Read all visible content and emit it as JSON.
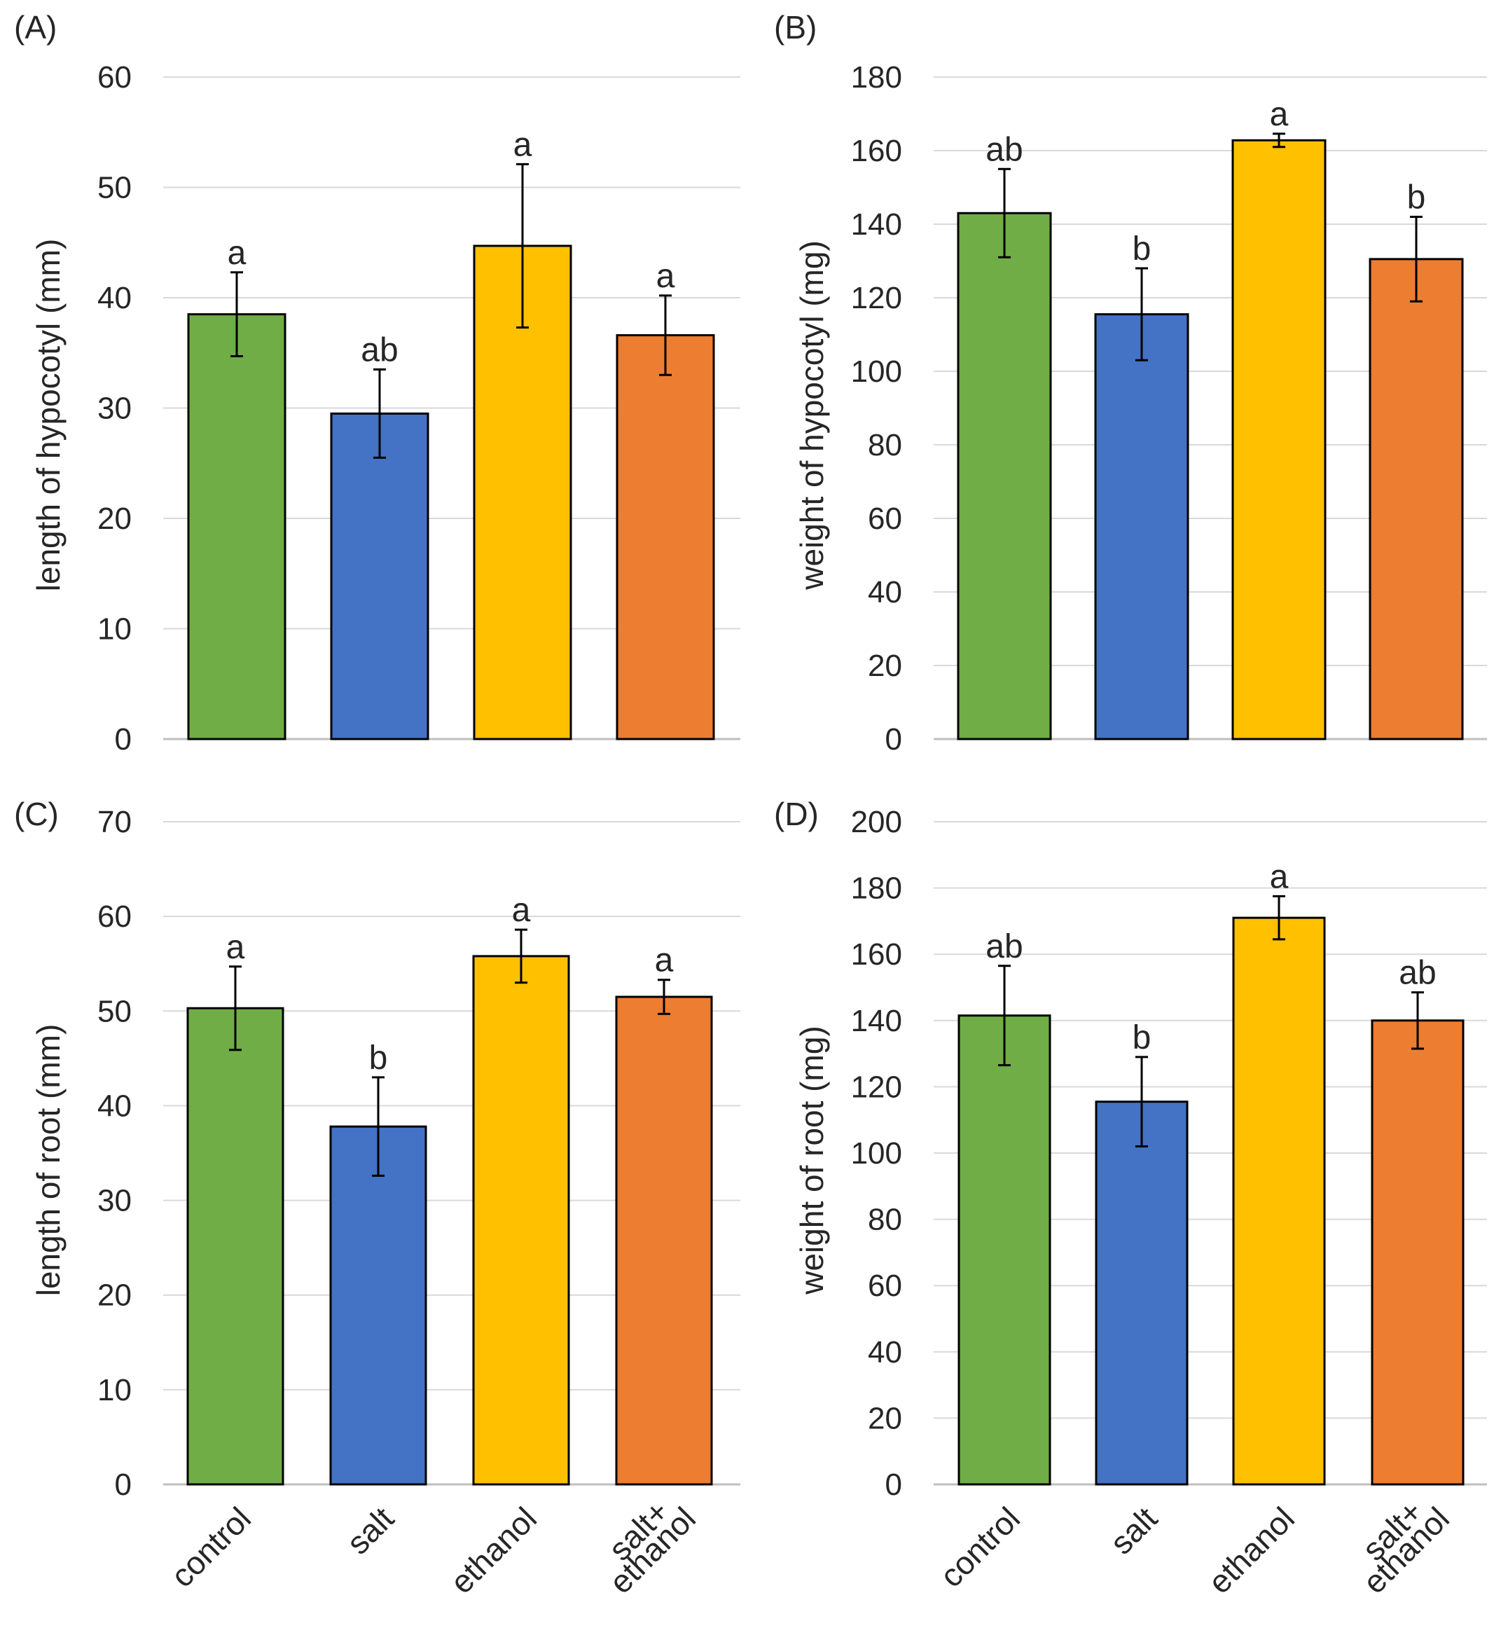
{
  "colors": {
    "control": "#70ad47",
    "salt": "#4472c4",
    "ethanol": "#ffc000",
    "salt_ethanol": "#ed7d31",
    "grid": "#d9d9d9",
    "axis": "#bfbfbf",
    "text": "#262626"
  },
  "chart_data": [
    {
      "panel": "(A)",
      "type": "bar",
      "ylabel": "length of hypocotyl (mm)",
      "ylim": [
        0,
        60
      ],
      "yticks": [
        0,
        10,
        20,
        30,
        40,
        50,
        60
      ],
      "grid": true,
      "categories": [
        "control",
        "salt",
        "ethanol",
        "salt+\nethanol"
      ],
      "values": [
        38.5,
        29.5,
        44.7,
        36.6
      ],
      "errors": [
        3.8,
        4.0,
        7.4,
        3.6
      ],
      "letters": [
        "a",
        "ab",
        "a",
        "a"
      ]
    },
    {
      "panel": "(B)",
      "type": "bar",
      "ylabel": "weight of hypocotyl (mg)",
      "ylim": [
        0,
        180
      ],
      "yticks": [
        0,
        20,
        40,
        60,
        80,
        100,
        120,
        140,
        160,
        180
      ],
      "grid": true,
      "categories": [
        "control",
        "salt",
        "ethanol",
        "salt+\nethanol"
      ],
      "values": [
        143,
        115.5,
        162.8,
        130.5
      ],
      "errors": [
        12,
        12.5,
        1.8,
        11.5
      ],
      "letters": [
        "ab",
        "b",
        "a",
        "b"
      ]
    },
    {
      "panel": "(C)",
      "type": "bar",
      "ylabel": "length of root (mm)",
      "ylim": [
        0,
        70
      ],
      "yticks": [
        0,
        10,
        20,
        30,
        40,
        50,
        60,
        70
      ],
      "grid": true,
      "categories": [
        "control",
        "salt",
        "ethanol",
        "salt+\nethanol"
      ],
      "xticklabels": [
        "control",
        "salt",
        "ethanol",
        "salt+",
        "ethanol"
      ],
      "values": [
        50.3,
        37.8,
        55.8,
        51.5
      ],
      "errors": [
        4.4,
        5.2,
        2.8,
        1.8
      ],
      "letters": [
        "a",
        "b",
        "a",
        "a"
      ]
    },
    {
      "panel": "(D)",
      "type": "bar",
      "ylabel": "weight of root (mg)",
      "ylim": [
        0,
        200
      ],
      "yticks": [
        0,
        20,
        40,
        60,
        80,
        100,
        120,
        140,
        160,
        180,
        200
      ],
      "grid": true,
      "categories": [
        "control",
        "salt",
        "ethanol",
        "salt+\nethanol"
      ],
      "xticklabels": [
        "control",
        "salt",
        "ethanol",
        "salt+",
        "ethanol"
      ],
      "values": [
        141.5,
        115.5,
        171,
        140
      ],
      "errors": [
        15,
        13.5,
        6.5,
        8.5
      ],
      "letters": [
        "ab",
        "b",
        "a",
        "ab"
      ]
    }
  ]
}
